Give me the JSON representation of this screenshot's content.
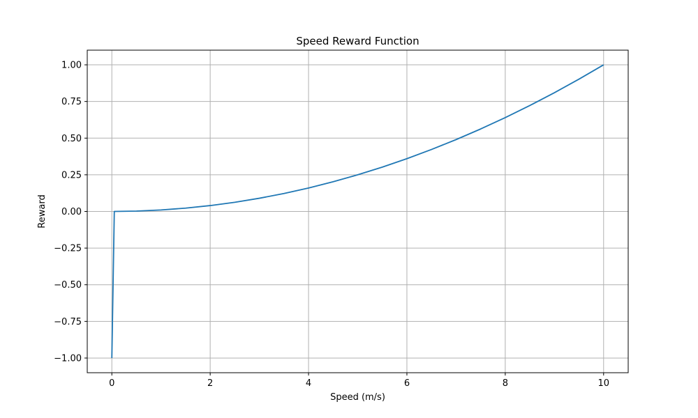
{
  "chart_data": {
    "type": "line",
    "title": "Speed Reward Function",
    "xlabel": "Speed (m/s)",
    "ylabel": "Reward",
    "xlim": [
      -0.5,
      10.5
    ],
    "ylim": [
      -1.1,
      1.1
    ],
    "grid": true,
    "xticks": [
      0,
      2,
      4,
      6,
      8,
      10
    ],
    "xtick_labels": [
      "0",
      "2",
      "4",
      "6",
      "8",
      "10"
    ],
    "yticks": [
      -1.0,
      -0.75,
      -0.5,
      -0.25,
      0.0,
      0.25,
      0.5,
      0.75,
      1.0
    ],
    "ytick_labels": [
      "−1.00",
      "−0.75",
      "−0.50",
      "−0.25",
      "0.00",
      "0.25",
      "0.50",
      "0.75",
      "1.00"
    ],
    "series": [
      {
        "color": "#1f77b4",
        "x": [
          0,
          0.05,
          0.5,
          1,
          1.5,
          2,
          2.5,
          3,
          3.5,
          4,
          4.5,
          5,
          5.5,
          6,
          6.5,
          7,
          7.5,
          8,
          8.5,
          9,
          9.5,
          10
        ],
        "y": [
          -1.0,
          0.0,
          0.0025,
          0.01,
          0.0225,
          0.04,
          0.0625,
          0.09,
          0.1225,
          0.16,
          0.2025,
          0.25,
          0.3025,
          0.36,
          0.4225,
          0.49,
          0.5625,
          0.64,
          0.7225,
          0.81,
          0.9025,
          1.0
        ]
      }
    ]
  }
}
